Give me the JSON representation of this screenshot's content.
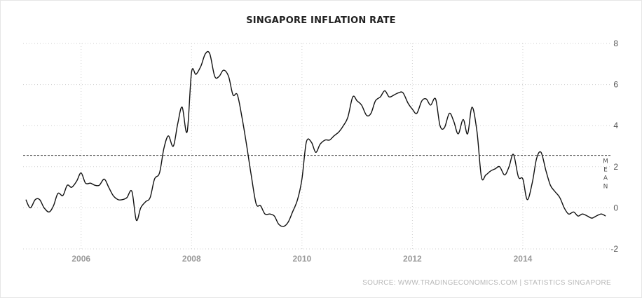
{
  "title": "SINGAPORE INFLATION RATE",
  "source": "SOURCE: WWW.TRADINGECONOMICS.COM | STATISTICS SINGAPORE",
  "colors": {
    "line": "#111111",
    "grid": "#cfcfcf",
    "mean_line": "#444444",
    "axis_text": "#999999"
  },
  "chart_data": {
    "type": "line",
    "title": "SINGAPORE INFLATION RATE",
    "xlabel": "",
    "ylabel": "",
    "xlim": [
      2004.95,
      2015.6
    ],
    "ylim": [
      -2,
      8
    ],
    "x_ticks": [
      2006,
      2008,
      2010,
      2012,
      2014
    ],
    "y_ticks": [
      -2,
      0,
      2,
      4,
      6,
      8
    ],
    "y_axis_side": "right",
    "grid": true,
    "mean": {
      "label": "MEAN",
      "value": 2.55
    },
    "series": [
      {
        "x": [
          2005.0,
          2005.08,
          2005.17,
          2005.25,
          2005.33,
          2005.42,
          2005.5,
          2005.58,
          2005.67,
          2005.75,
          2005.83,
          2005.92,
          2006.0,
          2006.08,
          2006.17,
          2006.25,
          2006.33,
          2006.42,
          2006.5,
          2006.58,
          2006.67,
          2006.75,
          2006.83,
          2006.92,
          2007.0,
          2007.08,
          2007.17,
          2007.25,
          2007.33,
          2007.42,
          2007.5,
          2007.58,
          2007.67,
          2007.75,
          2007.83,
          2007.92,
          2008.0,
          2008.08,
          2008.17,
          2008.25,
          2008.33,
          2008.42,
          2008.5,
          2008.58,
          2008.67,
          2008.75,
          2008.83,
          2008.92,
          2009.0,
          2009.08,
          2009.17,
          2009.25,
          2009.33,
          2009.42,
          2009.5,
          2009.58,
          2009.67,
          2009.75,
          2009.83,
          2009.92,
          2010.0,
          2010.08,
          2010.17,
          2010.25,
          2010.33,
          2010.42,
          2010.5,
          2010.58,
          2010.67,
          2010.75,
          2010.83,
          2010.92,
          2011.0,
          2011.08,
          2011.17,
          2011.25,
          2011.33,
          2011.42,
          2011.5,
          2011.58,
          2011.67,
          2011.75,
          2011.83,
          2011.92,
          2012.0,
          2012.08,
          2012.17,
          2012.25,
          2012.33,
          2012.42,
          2012.5,
          2012.58,
          2012.67,
          2012.75,
          2012.83,
          2012.92,
          2013.0,
          2013.08,
          2013.17,
          2013.25,
          2013.33,
          2013.42,
          2013.5,
          2013.58,
          2013.67,
          2013.75,
          2013.83,
          2013.92,
          2014.0,
          2014.08,
          2014.17,
          2014.25,
          2014.33,
          2014.42,
          2014.5,
          2014.58,
          2014.67,
          2014.75,
          2014.83,
          2014.92,
          2015.0,
          2015.08,
          2015.17,
          2015.25,
          2015.33,
          2015.42,
          2015.5
        ],
        "values": [
          0.4,
          0.0,
          0.4,
          0.4,
          0.0,
          -0.2,
          0.1,
          0.7,
          0.6,
          1.1,
          1.0,
          1.3,
          1.7,
          1.2,
          1.2,
          1.1,
          1.1,
          1.4,
          1.0,
          0.6,
          0.4,
          0.4,
          0.5,
          0.8,
          -0.6,
          0.0,
          0.3,
          0.5,
          1.4,
          1.7,
          2.9,
          3.5,
          3.0,
          4.1,
          4.9,
          3.7,
          6.6,
          6.5,
          6.9,
          7.5,
          7.5,
          6.4,
          6.4,
          6.7,
          6.4,
          5.5,
          5.5,
          4.3,
          3.0,
          1.6,
          0.2,
          0.1,
          -0.3,
          -0.3,
          -0.4,
          -0.8,
          -0.9,
          -0.7,
          -0.2,
          0.4,
          1.4,
          3.2,
          3.2,
          2.7,
          3.1,
          3.3,
          3.3,
          3.5,
          3.7,
          4.0,
          4.4,
          5.4,
          5.2,
          5.0,
          4.5,
          4.6,
          5.2,
          5.4,
          5.7,
          5.4,
          5.5,
          5.6,
          5.6,
          5.1,
          4.8,
          4.6,
          5.2,
          5.3,
          5.0,
          5.3,
          4.0,
          3.9,
          4.6,
          4.2,
          3.6,
          4.3,
          3.6,
          4.9,
          3.7,
          1.5,
          1.6,
          1.8,
          1.9,
          2.0,
          1.6,
          2.0,
          2.6,
          1.5,
          1.4,
          0.4,
          1.2,
          2.4,
          2.7,
          1.8,
          1.1,
          0.8,
          0.5,
          0.0,
          -0.3,
          -0.2,
          -0.4,
          -0.3,
          -0.4,
          -0.5,
          -0.4,
          -0.3,
          -0.4
        ]
      }
    ]
  }
}
